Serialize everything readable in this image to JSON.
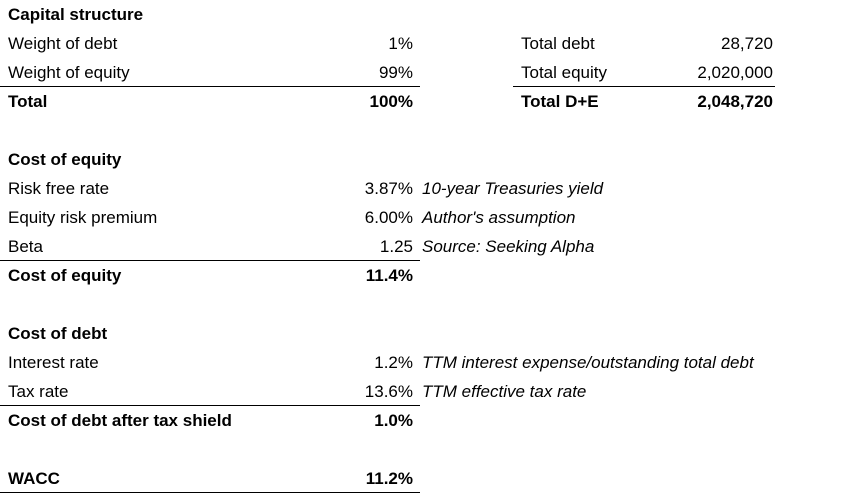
{
  "capital_structure": {
    "title": "Capital structure",
    "rows": [
      {
        "label": "Weight of debt",
        "value": "1%",
        "label2": "Total debt",
        "value2": "28,720"
      },
      {
        "label": "Weight of equity",
        "value": "99%",
        "label2": "Total equity",
        "value2": "2,020,000"
      },
      {
        "label": "Total",
        "value": "100%",
        "label2": "Total D+E",
        "value2": "2,048,720"
      }
    ]
  },
  "cost_of_equity": {
    "title": "Cost of equity",
    "rows": [
      {
        "label": "Risk free rate",
        "value": "3.87%",
        "comment": "10-year Treasuries yield"
      },
      {
        "label": "Equity risk premium",
        "value": "6.00%",
        "comment": "Author's assumption"
      },
      {
        "label": "Beta",
        "value": "1.25",
        "comment": "Source: Seeking Alpha"
      },
      {
        "label": "Cost of equity",
        "value": "11.4%",
        "comment": ""
      }
    ]
  },
  "cost_of_debt": {
    "title": "Cost of debt",
    "rows": [
      {
        "label": "Interest rate",
        "value": "1.2%",
        "comment": "TTM interest expense/outstanding total debt"
      },
      {
        "label": "Tax rate",
        "value": "13.6%",
        "comment": "TTM effective tax rate"
      },
      {
        "label": "Cost of debt after tax shield",
        "value": "1.0%",
        "comment": ""
      }
    ]
  },
  "wacc": {
    "label": "WACC",
    "value": "11.2%"
  }
}
